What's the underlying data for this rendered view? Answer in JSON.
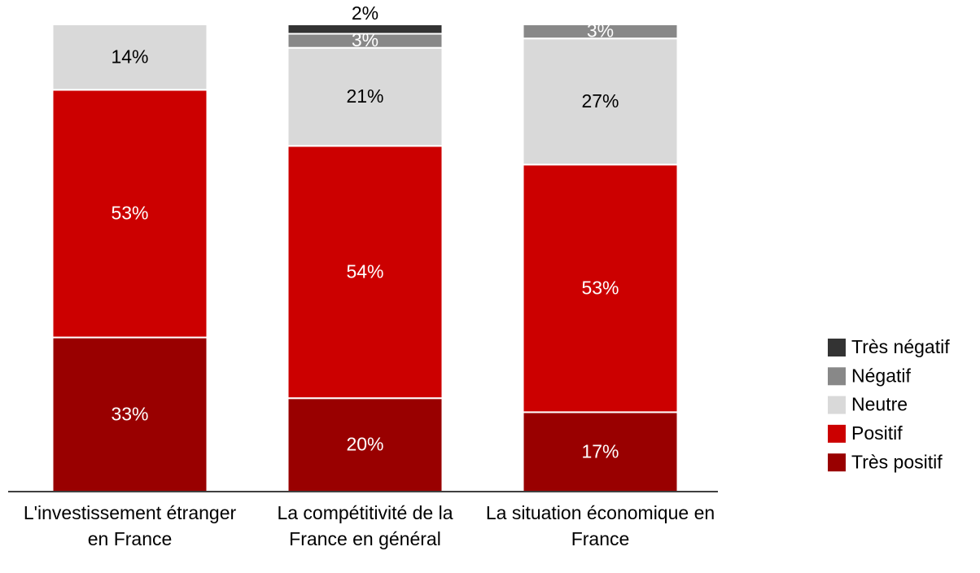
{
  "chart_data": {
    "type": "stacked_bar",
    "categories": [
      "L'investissement étranger en France",
      "La compétitivité de la France en général",
      "La situation économique en France"
    ],
    "ylim": [
      0,
      100
    ],
    "series": [
      {
        "name": "Très positif",
        "color": "#990000",
        "values": [
          33,
          20,
          17
        ],
        "value_labels": [
          "33%",
          "20%",
          "17%"
        ]
      },
      {
        "name": "Positif",
        "color": "#cc0000",
        "values": [
          53,
          54,
          53
        ],
        "value_labels": [
          "53%",
          "54%",
          "53%"
        ]
      },
      {
        "name": "Neutre",
        "color": "#d9d9d9",
        "values": [
          14,
          21,
          27
        ],
        "value_labels": [
          "14%",
          "21%",
          "27%"
        ]
      },
      {
        "name": "Négatif",
        "color": "#888888",
        "values": [
          0,
          3,
          3
        ],
        "value_labels": [
          null,
          "3%",
          "3%"
        ]
      },
      {
        "name": "Très négatif",
        "color": "#333333",
        "values": [
          0,
          2,
          0
        ],
        "value_labels": [
          null,
          "2%",
          null
        ]
      }
    ],
    "legend": "right"
  }
}
